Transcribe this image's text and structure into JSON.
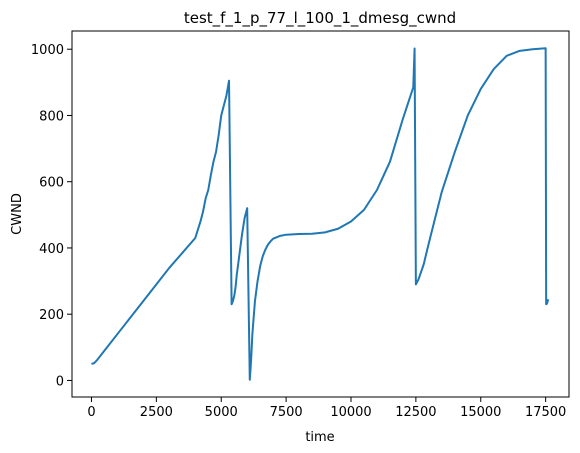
{
  "chart_data": {
    "type": "line",
    "title": "test_f_1_p_77_l_100_1_dmesg_cwnd",
    "xlabel": "time",
    "ylabel": "CWND",
    "xlim": [
      -750,
      18400
    ],
    "ylim": [
      -50,
      1055
    ],
    "xticks": [
      0,
      2500,
      5000,
      7500,
      10000,
      12500,
      15000,
      17500
    ],
    "yticks": [
      0,
      200,
      400,
      600,
      800,
      1000
    ],
    "grid": false,
    "color": "#1f77b4",
    "series": [
      {
        "x": [
          0,
          100,
          200,
          500,
          1000,
          1500,
          2000,
          2500,
          3000,
          3500,
          4000,
          4100,
          4200,
          4300,
          4400,
          4500,
          4600,
          4700,
          4800,
          4900,
          5000,
          5100,
          5200,
          5300,
          5400,
          5450,
          5500,
          5550,
          5600,
          5700,
          5800,
          5900,
          6000,
          6100,
          6150,
          6200,
          6250,
          6300,
          6400,
          6500,
          6600,
          6700,
          6800,
          6900,
          7000,
          7250,
          7500,
          8000,
          8500,
          9000,
          9500,
          10000,
          10500,
          11000,
          11500,
          12000,
          12400,
          12450,
          12500,
          12600,
          12800,
          13000,
          13500,
          14000,
          14500,
          15000,
          15500,
          16000,
          16500,
          17000,
          17500,
          17520,
          17550,
          17600
        ],
        "y": [
          50,
          52,
          60,
          90,
          140,
          190,
          240,
          290,
          340,
          385,
          430,
          455,
          480,
          510,
          550,
          575,
          620,
          660,
          690,
          740,
          800,
          830,
          860,
          905,
          230,
          240,
          255,
          280,
          320,
          380,
          440,
          490,
          520,
          2,
          60,
          140,
          190,
          240,
          300,
          345,
          375,
          395,
          410,
          420,
          428,
          436,
          440,
          442,
          443,
          447,
          458,
          480,
          515,
          575,
          660,
          790,
          885,
          1002,
          290,
          305,
          350,
          415,
          570,
          690,
          800,
          880,
          940,
          980,
          995,
          1000,
          1003,
          230,
          232,
          245
        ]
      }
    ]
  }
}
